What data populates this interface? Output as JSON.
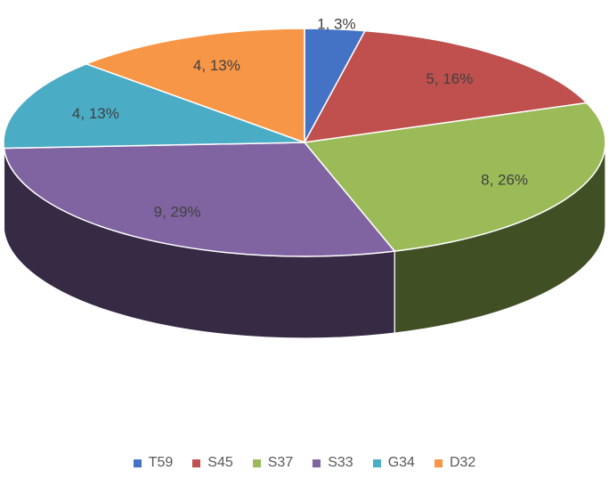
{
  "chart_data": {
    "type": "pie",
    "style": "3d",
    "legend": "bottom",
    "series": [
      {
        "name": "T59",
        "value": 1,
        "percent": "3%",
        "label": "1, 3%",
        "color": "#4472C4"
      },
      {
        "name": "S45",
        "value": 5,
        "percent": "16%",
        "label": "5, 16%",
        "color": "#C0504D"
      },
      {
        "name": "S37",
        "value": 8,
        "percent": "26%",
        "label": "8, 26%",
        "color": "#9BBB59"
      },
      {
        "name": "S33",
        "value": 9,
        "percent": "29%",
        "label": "9, 29%",
        "color": "#8064A2"
      },
      {
        "name": "G34",
        "value": 4,
        "percent": "13%",
        "label": "4, 13%",
        "color": "#4BACC6"
      },
      {
        "name": "D32",
        "value": 4,
        "percent": "13%",
        "label": "4, 13%",
        "color": "#F79646"
      }
    ]
  }
}
